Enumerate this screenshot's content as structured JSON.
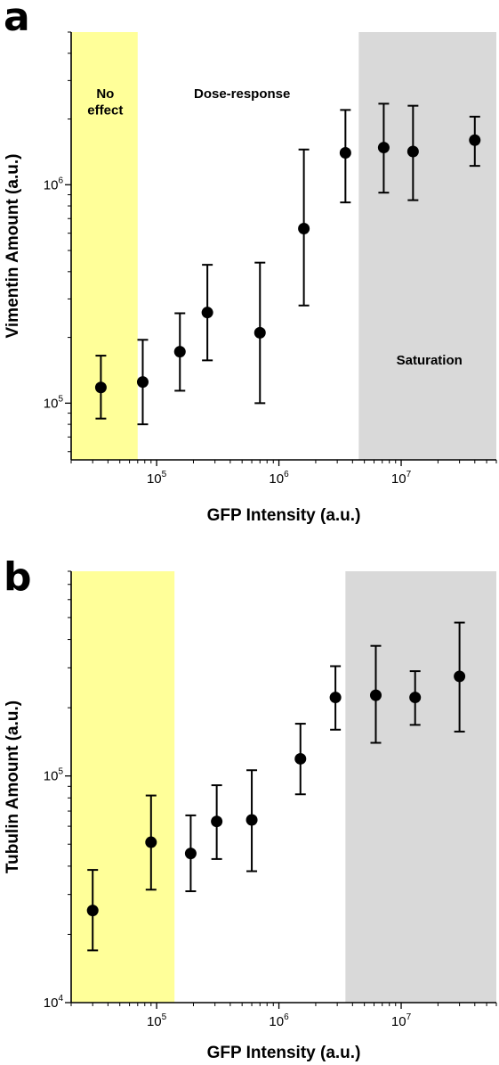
{
  "chart_data": [
    {
      "panel_label": "a",
      "type": "scatter",
      "xlabel": "GFP Intensity (a.u.)",
      "ylabel": "Vimentin Amount (a.u.)",
      "x_scale": "log",
      "y_scale": "log",
      "xlim": [
        20000,
        60000000
      ],
      "ylim": [
        55000,
        5000000
      ],
      "x_ticks": [
        {
          "value": 100000,
          "base": "10",
          "exp": "5"
        },
        {
          "value": 1000000,
          "base": "10",
          "exp": "6"
        },
        {
          "value": 10000000,
          "base": "10",
          "exp": "7"
        }
      ],
      "y_ticks": [
        {
          "value": 100000,
          "base": "10",
          "exp": "5"
        },
        {
          "value": 1000000,
          "base": "10",
          "exp": "6"
        }
      ],
      "regions": [
        {
          "name": "yellow",
          "x_range": [
            20000,
            70000
          ],
          "color": "#ffff99"
        },
        {
          "name": "gray",
          "x_range": [
            4500000,
            60000000
          ],
          "color": "#d9d9d9"
        }
      ],
      "annotations": [
        {
          "text_lines": [
            "No",
            "effect"
          ],
          "x": 38000,
          "y": 2500000
        },
        {
          "text_lines": [
            "Dose-response"
          ],
          "x": 500000,
          "y": 2500000
        },
        {
          "text_lines": [
            "Saturation"
          ],
          "x": 17000000,
          "y": 150000
        }
      ],
      "points": [
        {
          "x": 35000,
          "y": 118000,
          "y_low": 85000,
          "y_high": 165000
        },
        {
          "x": 77000,
          "y": 125000,
          "y_low": 80000,
          "y_high": 195000
        },
        {
          "x": 155000,
          "y": 172000,
          "y_low": 114000,
          "y_high": 258000
        },
        {
          "x": 260000,
          "y": 260000,
          "y_low": 157000,
          "y_high": 430000
        },
        {
          "x": 700000,
          "y": 210000,
          "y_low": 100000,
          "y_high": 440000
        },
        {
          "x": 1600000,
          "y": 630000,
          "y_low": 280000,
          "y_high": 1450000
        },
        {
          "x": 3500000,
          "y": 1400000,
          "y_low": 830000,
          "y_high": 2200000
        },
        {
          "x": 7200000,
          "y": 1480000,
          "y_low": 920000,
          "y_high": 2350000
        },
        {
          "x": 12500000,
          "y": 1420000,
          "y_low": 850000,
          "y_high": 2300000
        },
        {
          "x": 40000000,
          "y": 1600000,
          "y_low": 1220000,
          "y_high": 2050000
        }
      ]
    },
    {
      "panel_label": "b",
      "type": "scatter",
      "xlabel": "GFP Intensity (a.u.)",
      "ylabel": "Tubulin Amount (a.u.)",
      "x_scale": "log",
      "y_scale": "log",
      "xlim": [
        20000,
        60000000
      ],
      "ylim": [
        10000,
        800000
      ],
      "x_ticks": [
        {
          "value": 100000,
          "base": "10",
          "exp": "5"
        },
        {
          "value": 1000000,
          "base": "10",
          "exp": "6"
        },
        {
          "value": 10000000,
          "base": "10",
          "exp": "7"
        }
      ],
      "y_ticks": [
        {
          "value": 10000,
          "base": "10",
          "exp": "4"
        },
        {
          "value": 100000,
          "base": "10",
          "exp": "5"
        }
      ],
      "regions": [
        {
          "name": "yellow",
          "x_range": [
            20000,
            140000
          ],
          "color": "#ffff99"
        },
        {
          "name": "gray",
          "x_range": [
            3500000,
            60000000
          ],
          "color": "#d9d9d9"
        }
      ],
      "annotations": [],
      "points": [
        {
          "x": 30000,
          "y": 25500,
          "y_low": 17000,
          "y_high": 38500
        },
        {
          "x": 90000,
          "y": 51000,
          "y_low": 31500,
          "y_high": 82000
        },
        {
          "x": 190000,
          "y": 45500,
          "y_low": 31000,
          "y_high": 67000
        },
        {
          "x": 310000,
          "y": 63000,
          "y_low": 43000,
          "y_high": 91000
        },
        {
          "x": 600000,
          "y": 64000,
          "y_low": 38000,
          "y_high": 106000
        },
        {
          "x": 1500000,
          "y": 119000,
          "y_low": 83000,
          "y_high": 170000
        },
        {
          "x": 2900000,
          "y": 222000,
          "y_low": 160000,
          "y_high": 305000
        },
        {
          "x": 6200000,
          "y": 227000,
          "y_low": 140000,
          "y_high": 375000
        },
        {
          "x": 13000000,
          "y": 222000,
          "y_low": 168000,
          "y_high": 290000
        },
        {
          "x": 30000000,
          "y": 275000,
          "y_low": 157000,
          "y_high": 475000
        }
      ]
    }
  ]
}
